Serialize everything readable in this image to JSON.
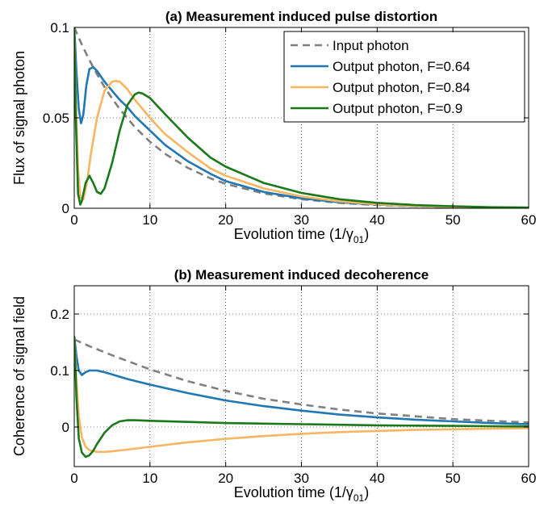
{
  "chart_data": [
    {
      "type": "line",
      "title": "(a) Measurement induced pulse distortion",
      "xlabel_main": "Evolution time (1/γ",
      "xlabel_sub": "01",
      "xlabel_close": ")",
      "ylabel": "Flux of signal photon",
      "xlim": [
        0,
        60
      ],
      "ylim": [
        0,
        0.1
      ],
      "xticks": [
        0,
        10,
        20,
        30,
        40,
        50,
        60
      ],
      "yticks": [
        0,
        0.05,
        0.1
      ],
      "ytick_labels": [
        "0",
        "0.05",
        "0.1"
      ],
      "grid": true,
      "legend_position": "top-right",
      "series": [
        {
          "name": "Input photon",
          "color": "#808080",
          "dash": true,
          "x": [
            0,
            1,
            2,
            3,
            4,
            5,
            6,
            8,
            10,
            12,
            15,
            18,
            20,
            25,
            30,
            35,
            40,
            45,
            50,
            55,
            60
          ],
          "y": [
            0.1,
            0.0905,
            0.0819,
            0.0741,
            0.067,
            0.0607,
            0.0549,
            0.0449,
            0.0368,
            0.0301,
            0.0223,
            0.0165,
            0.0135,
            0.0082,
            0.005,
            0.003,
            0.0018,
            0.0011,
            0.0007,
            0.0004,
            0.0002
          ]
        },
        {
          "name": "Output photon, F=0.64",
          "color": "#1f77b4",
          "dash": false,
          "x": [
            0,
            0.3,
            0.6,
            0.9,
            1.2,
            1.6,
            2.0,
            2.5,
            3.0,
            4.0,
            5.0,
            6.0,
            7.0,
            8.0,
            10,
            12,
            15,
            18,
            20,
            25,
            30,
            35,
            40,
            45,
            50,
            55,
            60
          ],
          "y": [
            0.1,
            0.075,
            0.055,
            0.047,
            0.052,
            0.068,
            0.077,
            0.078,
            0.076,
            0.07,
            0.065,
            0.06,
            0.056,
            0.051,
            0.043,
            0.035,
            0.026,
            0.019,
            0.015,
            0.009,
            0.0055,
            0.0033,
            0.002,
            0.0012,
            0.0007,
            0.0004,
            0.0003
          ]
        },
        {
          "name": "Output photon, F=0.84",
          "color": "#f8b562",
          "dash": false,
          "x": [
            0,
            0.2,
            0.5,
            0.8,
            1.2,
            1.7,
            2.2,
            3.0,
            4.0,
            5.0,
            5.5,
            6.0,
            7.0,
            8.0,
            10,
            12,
            15,
            18,
            20,
            25,
            30,
            35,
            40,
            45,
            50,
            55,
            60
          ],
          "y": [
            0.1,
            0.06,
            0.022,
            0.006,
            0.005,
            0.015,
            0.03,
            0.05,
            0.065,
            0.07,
            0.0705,
            0.07,
            0.066,
            0.06,
            0.05,
            0.041,
            0.031,
            0.022,
            0.018,
            0.011,
            0.0065,
            0.0038,
            0.0022,
            0.0013,
            0.0008,
            0.0005,
            0.0003
          ]
        },
        {
          "name": "Output photon, F=0.9",
          "color": "#1a7a1a",
          "dash": false,
          "x": [
            0,
            0.2,
            0.5,
            0.8,
            1.0,
            1.5,
            2.0,
            2.5,
            3.0,
            3.5,
            4.0,
            5.0,
            6.0,
            7.0,
            8.0,
            8.5,
            9.0,
            10,
            12,
            15,
            18,
            20,
            25,
            30,
            35,
            40,
            45,
            50,
            55,
            60
          ],
          "y": [
            0.1,
            0.05,
            0.008,
            0.002,
            0.004,
            0.014,
            0.018,
            0.014,
            0.009,
            0.008,
            0.011,
            0.025,
            0.043,
            0.057,
            0.063,
            0.064,
            0.0635,
            0.061,
            0.052,
            0.039,
            0.028,
            0.023,
            0.014,
            0.0085,
            0.005,
            0.003,
            0.0018,
            0.0011,
            0.0006,
            0.0004
          ]
        }
      ]
    },
    {
      "type": "line",
      "title": "(b) Measurement induced decoherence",
      "xlabel_main": "Evolution time (1/γ",
      "xlabel_sub": "01",
      "xlabel_close": ")",
      "ylabel": "Coherence of signal field",
      "xlim": [
        0,
        60
      ],
      "ylim": [
        -0.07,
        0.25
      ],
      "xticks": [
        0,
        10,
        20,
        30,
        40,
        50,
        60
      ],
      "yticks": [
        0,
        0.1,
        0.2
      ],
      "ytick_labels": [
        "0",
        "0.1",
        "0.2"
      ],
      "grid": true,
      "series": [
        {
          "name": "Input photon",
          "color": "#808080",
          "dash": true,
          "x": [
            0,
            2,
            5,
            10,
            15,
            20,
            25,
            30,
            35,
            40,
            45,
            50,
            55,
            60
          ],
          "y": [
            0.155,
            0.143,
            0.127,
            0.102,
            0.081,
            0.064,
            0.05,
            0.04,
            0.031,
            0.024,
            0.019,
            0.014,
            0.011,
            0.008
          ]
        },
        {
          "name": "Output photon, F=0.64",
          "color": "#1f77b4",
          "dash": false,
          "x": [
            0,
            0.3,
            0.6,
            1.0,
            1.5,
            2.0,
            3.0,
            4.0,
            5.0,
            7.0,
            10,
            15,
            20,
            25,
            30,
            35,
            40,
            45,
            50,
            55,
            60
          ],
          "y": [
            0.16,
            0.125,
            0.1,
            0.092,
            0.097,
            0.1,
            0.1,
            0.097,
            0.093,
            0.085,
            0.075,
            0.06,
            0.047,
            0.037,
            0.029,
            0.022,
            0.017,
            0.013,
            0.01,
            0.007,
            0.005
          ]
        },
        {
          "name": "Output photon, F=0.84",
          "color": "#f8b562",
          "dash": false,
          "x": [
            0,
            0.3,
            0.6,
            1.0,
            1.5,
            2.0,
            3.0,
            4.0,
            5.0,
            7.0,
            10,
            15,
            20,
            25,
            30,
            35,
            40,
            45,
            50,
            55,
            60
          ],
          "y": [
            0.16,
            0.08,
            0.02,
            -0.018,
            -0.035,
            -0.041,
            -0.044,
            -0.044,
            -0.043,
            -0.04,
            -0.035,
            -0.027,
            -0.021,
            -0.016,
            -0.012,
            -0.009,
            -0.007,
            -0.005,
            -0.004,
            -0.003,
            -0.002
          ]
        },
        {
          "name": "Output photon, F=0.9",
          "color": "#1a7a1a",
          "dash": false,
          "x": [
            0,
            0.3,
            0.6,
            1.0,
            1.5,
            2.0,
            2.5,
            3.0,
            4.0,
            5.0,
            6.0,
            7.0,
            8.0,
            10,
            15,
            20,
            25,
            30,
            35,
            40,
            45,
            50,
            55,
            60
          ],
          "y": [
            0.16,
            0.05,
            -0.02,
            -0.045,
            -0.053,
            -0.05,
            -0.042,
            -0.03,
            -0.01,
            0.003,
            0.01,
            0.012,
            0.012,
            0.011,
            0.009,
            0.007,
            0.006,
            0.005,
            0.004,
            0.003,
            0.0025,
            0.002,
            0.0015,
            0.001
          ]
        }
      ]
    }
  ]
}
